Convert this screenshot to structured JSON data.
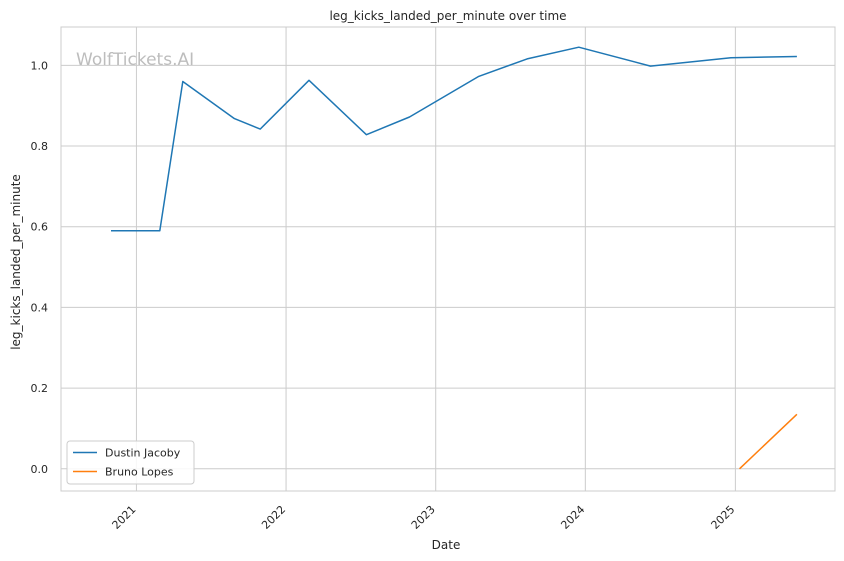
{
  "chart_data": {
    "type": "line",
    "title": "leg_kicks_landed_per_minute over time",
    "xlabel": "Date",
    "ylabel": "leg_kicks_landed_per_minute",
    "watermark": "WolfTickets.AI",
    "xlim": [
      "2020-07-01",
      "2025-09-01"
    ],
    "ylim": [
      -0.055,
      1.095
    ],
    "x_ticks": [
      "2021-01-01",
      "2022-01-01",
      "2023-01-01",
      "2024-01-01",
      "2025-01-01"
    ],
    "x_tick_labels": [
      "2021",
      "2022",
      "2023",
      "2024",
      "2025"
    ],
    "y_ticks": [
      0.0,
      0.2,
      0.4,
      0.6,
      0.8,
      1.0
    ],
    "y_tick_labels": [
      "0.0",
      "0.2",
      "0.4",
      "0.6",
      "0.8",
      "1.0"
    ],
    "grid": true,
    "legend_position": "lower-left",
    "series": [
      {
        "name": "Dustin Jacoby",
        "color": "#1f77b4",
        "points": [
          {
            "x": "2020-10-31",
            "y": 0.59
          },
          {
            "x": "2021-02-27",
            "y": 0.59
          },
          {
            "x": "2021-04-24",
            "y": 0.96
          },
          {
            "x": "2021-08-28",
            "y": 0.868
          },
          {
            "x": "2021-10-30",
            "y": 0.842
          },
          {
            "x": "2022-02-26",
            "y": 0.963
          },
          {
            "x": "2022-07-16",
            "y": 0.828
          },
          {
            "x": "2022-10-29",
            "y": 0.872
          },
          {
            "x": "2023-04-15",
            "y": 0.972
          },
          {
            "x": "2023-08-12",
            "y": 1.016
          },
          {
            "x": "2023-12-16",
            "y": 1.045
          },
          {
            "x": "2024-06-08",
            "y": 0.998
          },
          {
            "x": "2024-12-21",
            "y": 1.019
          },
          {
            "x": "2025-05-31",
            "y": 1.022
          }
        ]
      },
      {
        "name": "Bruno Lopes",
        "color": "#ff7f0e",
        "points": [
          {
            "x": "2025-01-11",
            "y": 0.0
          },
          {
            "x": "2025-05-31",
            "y": 0.135
          }
        ]
      }
    ]
  }
}
